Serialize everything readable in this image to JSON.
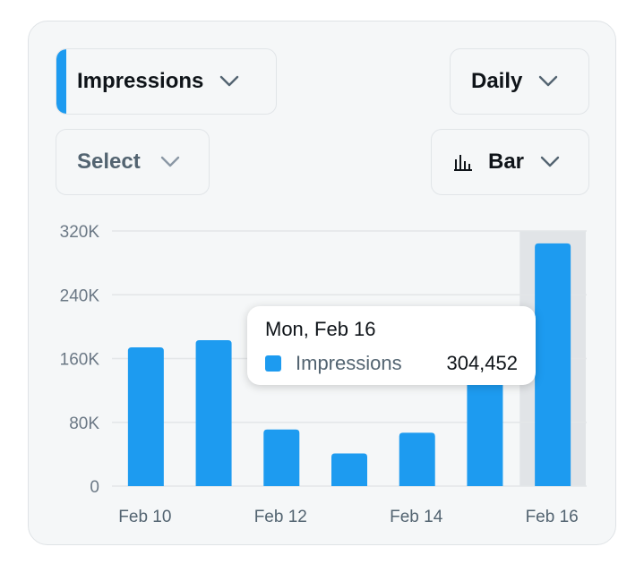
{
  "controls": {
    "metric": "Impressions",
    "interval": "Daily",
    "compare": "Select",
    "chart_type": "Bar"
  },
  "colors": {
    "accent": "#1d9bf0",
    "highlight": "#e1e4e7",
    "grid": "#e3e6e8"
  },
  "chart_data": {
    "type": "bar",
    "title": "",
    "xlabel": "",
    "ylabel": "",
    "categories": [
      "Feb 10",
      "Feb 11",
      "Feb 12",
      "Feb 13",
      "Feb 14",
      "Feb 15",
      "Feb 16"
    ],
    "series": [
      {
        "name": "Impressions",
        "values": [
          174000,
          183000,
          71000,
          41000,
          67000,
          138000,
          304452
        ]
      }
    ],
    "x_tick_labels": [
      "Feb 10",
      "Feb 12",
      "Feb 14",
      "Feb 16"
    ],
    "y_ticks": [
      0,
      80000,
      160000,
      240000,
      320000
    ],
    "y_tick_labels": [
      "0",
      "80K",
      "160K",
      "240K",
      "320K"
    ],
    "ylim": [
      0,
      320000
    ],
    "grid": true,
    "highlighted_index": 6
  },
  "tooltip": {
    "date": "Mon, Feb 16",
    "series_name": "Impressions",
    "value": "304,452"
  }
}
